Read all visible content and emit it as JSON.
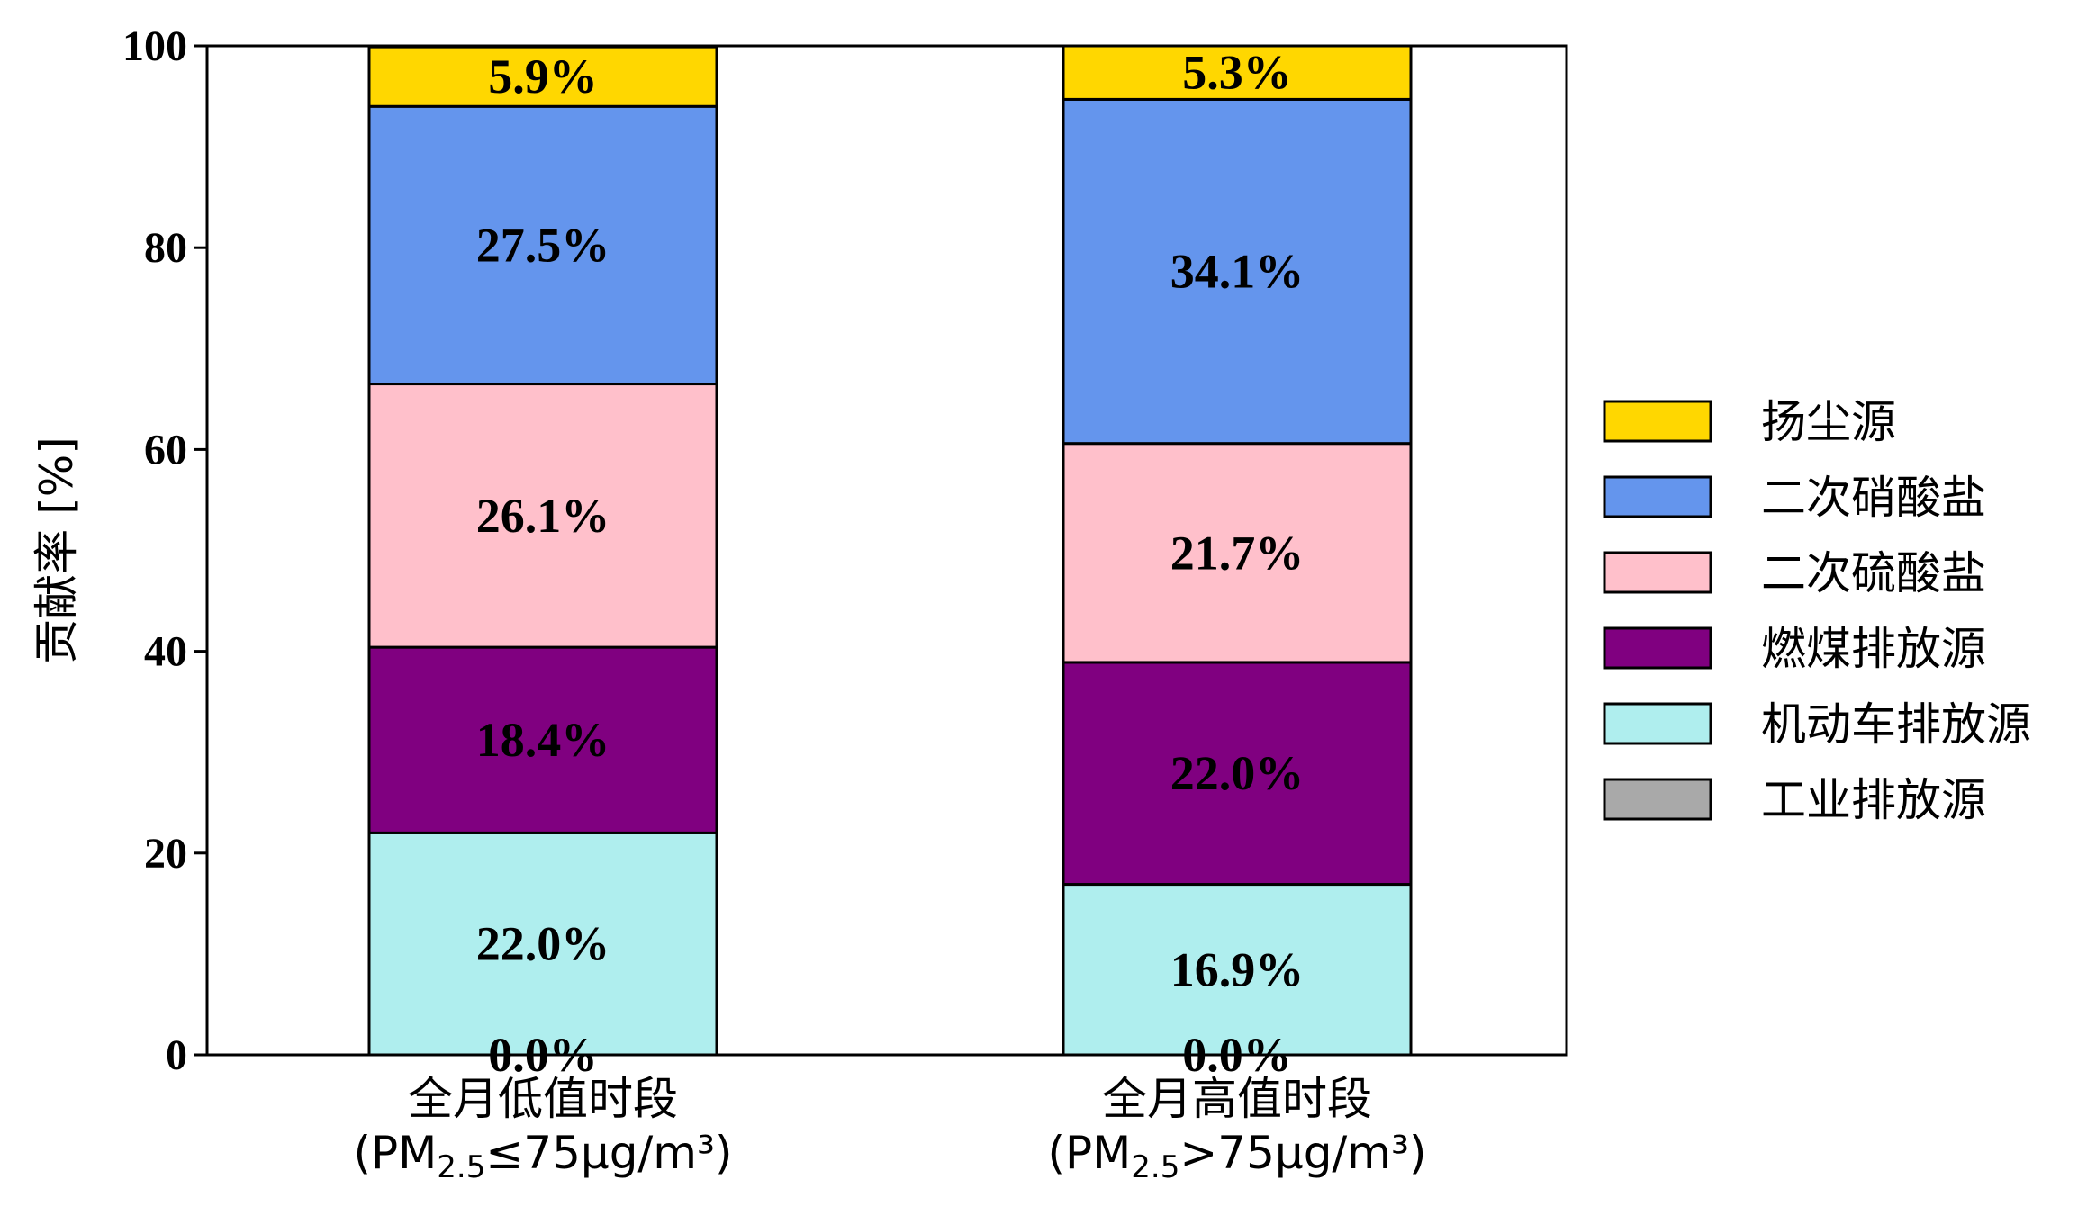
{
  "chart_data": {
    "type": "bar",
    "stacked": true,
    "ylabel": "贡献率 [%]",
    "ylim": [
      0,
      100
    ],
    "yticks": [
      0,
      20,
      40,
      60,
      80,
      100
    ],
    "categories": [
      {
        "line1": "全月低值时段",
        "line2_prefix": "(PM",
        "line2_sub": "2.5",
        "line2_suffix": "≤75μg/m³)"
      },
      {
        "line1": "全月高值时段",
        "line2_prefix": "(PM",
        "line2_sub": "2.5",
        "line2_suffix": ">75μg/m³)"
      }
    ],
    "series": [
      {
        "name": "工业排放源",
        "color": "#a9a9a9",
        "values": [
          0.0,
          0.0
        ],
        "labels": [
          "0.0%",
          "0.0%"
        ]
      },
      {
        "name": "机动车排放源",
        "color": "#afeeee",
        "values": [
          22.0,
          16.9
        ],
        "labels": [
          "22.0%",
          "16.9%"
        ]
      },
      {
        "name": "燃煤排放源",
        "color": "#800080",
        "values": [
          18.4,
          22.0
        ],
        "labels": [
          "18.4%",
          "22.0%"
        ]
      },
      {
        "name": "二次硫酸盐",
        "color": "#ffc0cb",
        "values": [
          26.1,
          21.7
        ],
        "labels": [
          "26.1%",
          "21.7%"
        ]
      },
      {
        "name": "二次硝酸盐",
        "color": "#6495ed",
        "values": [
          27.5,
          34.1
        ],
        "labels": [
          "27.5%",
          "34.1%"
        ]
      },
      {
        "name": "扬尘源",
        "color": "#ffd700",
        "values": [
          5.9,
          5.3
        ],
        "labels": [
          "5.9%",
          "5.3%"
        ]
      }
    ],
    "legend_order": [
      "扬尘源",
      "二次硝酸盐",
      "二次硫酸盐",
      "燃煤排放源",
      "机动车排放源",
      "工业排放源"
    ],
    "legend_position": "right",
    "grid": false
  }
}
